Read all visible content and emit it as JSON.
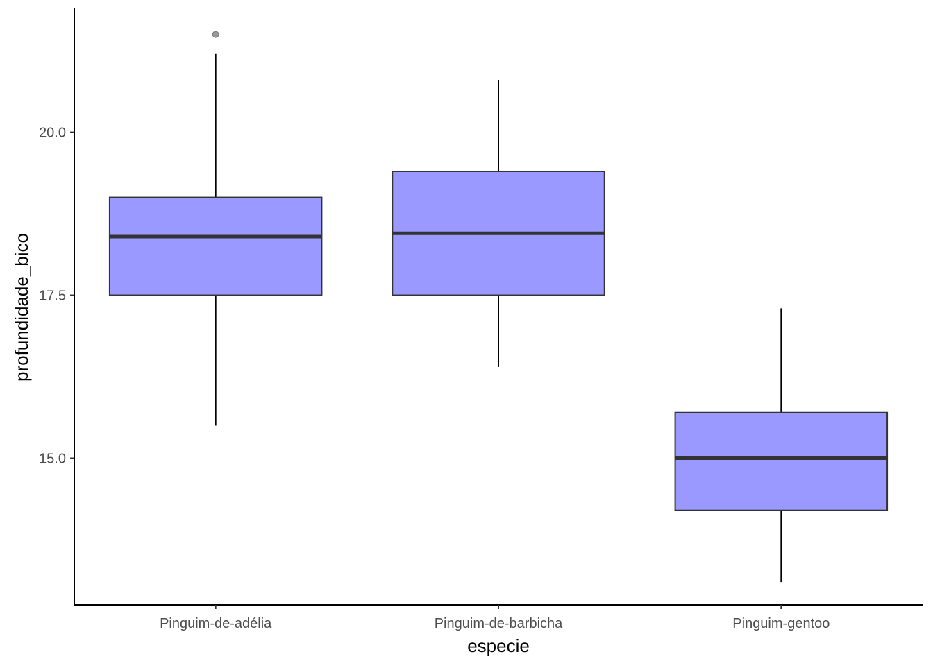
{
  "chart_data": {
    "type": "boxplot",
    "xlabel": "especie",
    "ylabel": "profundidade_bico",
    "ylim": [
      12.75,
      21.9
    ],
    "yticks": [
      15.0,
      17.5,
      20.0
    ],
    "ytick_labels": [
      "15.0",
      "17.5",
      "20.0"
    ],
    "grid": false,
    "legend": "none",
    "categories": [
      "Pinguim-de-adélia",
      "Pinguim-de-barbicha",
      "Pinguim-gentoo"
    ],
    "boxes": [
      {
        "category": "Pinguim-de-adélia",
        "whisker_low": 15.5,
        "q1": 17.5,
        "median": 18.4,
        "q3": 19.0,
        "whisker_high": 21.2,
        "outliers": [
          21.5
        ]
      },
      {
        "category": "Pinguim-de-barbicha",
        "whisker_low": 16.4,
        "q1": 17.5,
        "median": 18.45,
        "q3": 19.4,
        "whisker_high": 20.8,
        "outliers": []
      },
      {
        "category": "Pinguim-gentoo",
        "whisker_low": 13.1,
        "q1": 14.2,
        "median": 15.0,
        "q3": 15.7,
        "whisker_high": 17.3,
        "outliers": []
      }
    ],
    "colors": {
      "box_fill": "#9999ff",
      "box_stroke": "#333333",
      "median": "#333333",
      "whisker": "#000000",
      "outlier": "#999999",
      "axis": "#000000"
    }
  }
}
